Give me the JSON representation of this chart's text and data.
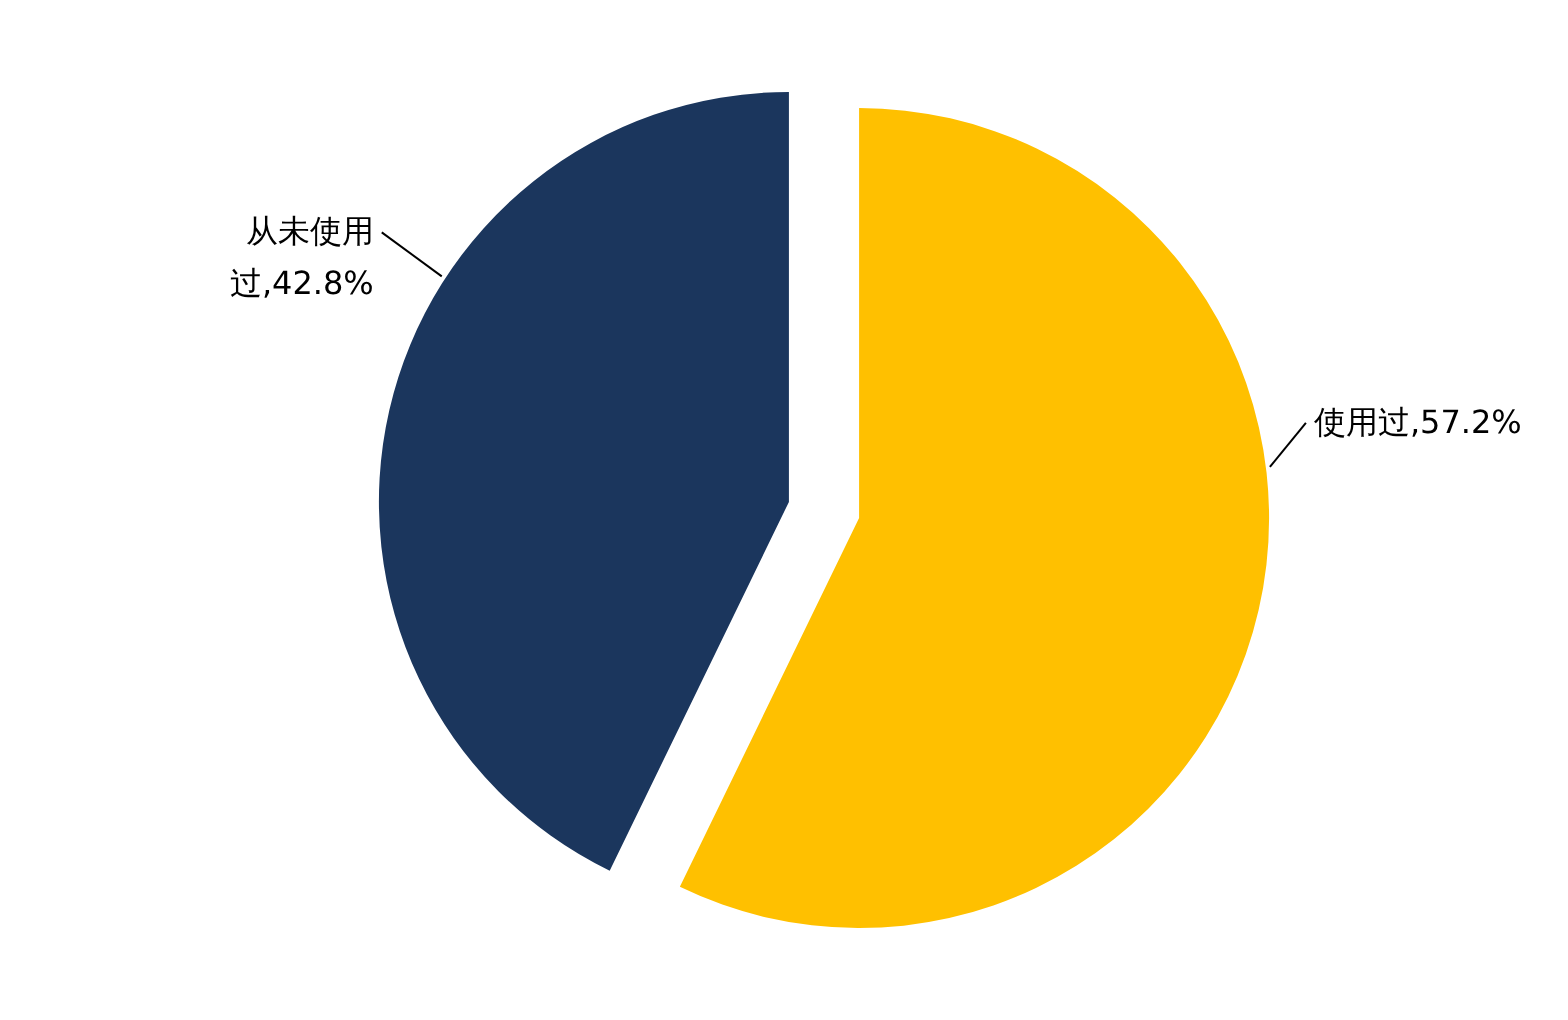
{
  "chart_data": {
    "type": "pie",
    "categories": [
      "使用过",
      "从未使用过"
    ],
    "values": [
      57.2,
      42.8
    ],
    "value_labels": [
      "57.2%",
      "42.8%"
    ],
    "colors": [
      "#ffc000",
      "#1b365d"
    ]
  }
}
